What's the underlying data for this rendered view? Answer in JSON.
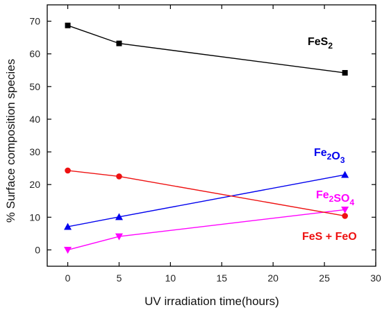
{
  "chart_data": {
    "type": "line",
    "xlabel": "UV irradiation time(hours)",
    "ylabel": "% Surface composition species",
    "xlim": [
      -2,
      30
    ],
    "ylim": [
      -5,
      75
    ],
    "xticks": [
      0,
      5,
      10,
      15,
      20,
      25,
      30
    ],
    "yticks": [
      0,
      10,
      20,
      30,
      40,
      50,
      60,
      70
    ],
    "grid": false,
    "legend": "none",
    "x": [
      0,
      5,
      27
    ],
    "series": [
      {
        "name": "FeS2",
        "label_parts": [
          {
            "t": "FeS",
            "sub": false
          },
          {
            "t": "2",
            "sub": true
          }
        ],
        "values": [
          68.7,
          63.2,
          54.2
        ],
        "color": "#000000",
        "marker": "square"
      },
      {
        "name": "Fe2O3",
        "label_parts": [
          {
            "t": "Fe",
            "sub": false
          },
          {
            "t": "2",
            "sub": true
          },
          {
            "t": "O",
            "sub": false
          },
          {
            "t": "3",
            "sub": true
          }
        ],
        "values": [
          7.1,
          10.1,
          23.0
        ],
        "color": "#0000ee",
        "marker": "triangle-up"
      },
      {
        "name": "Fe2SO4",
        "label_parts": [
          {
            "t": "Fe",
            "sub": false
          },
          {
            "t": "2",
            "sub": true
          },
          {
            "t": "SO",
            "sub": false
          },
          {
            "t": "4",
            "sub": true
          }
        ],
        "values": [
          0.0,
          4.1,
          12.3
        ],
        "color": "#ff00ff",
        "marker": "triangle-down"
      },
      {
        "name": "FeS + FeO",
        "label_parts": [
          {
            "t": "FeS + FeO",
            "sub": false
          }
        ],
        "values": [
          24.3,
          22.5,
          10.4
        ],
        "color": "#ee1111",
        "marker": "circle"
      }
    ]
  }
}
